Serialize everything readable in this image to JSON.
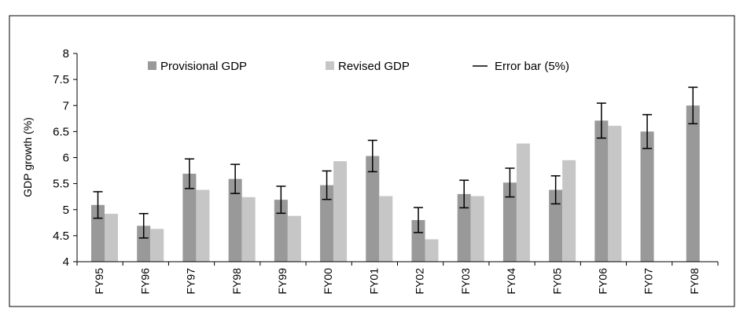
{
  "chart_data": {
    "type": "bar",
    "title": "",
    "xlabel": "",
    "ylabel": "GDP growth (%)",
    "ylim": [
      4,
      8
    ],
    "yticks": [
      "4",
      "4.5",
      "5",
      "5.5",
      "6",
      "6.5",
      "7",
      "7.5",
      "8"
    ],
    "grid": false,
    "legend_position": "top",
    "categories": [
      "FY95",
      "FY96",
      "FY97",
      "FY98",
      "FY99",
      "FY00",
      "FY01",
      "FY02",
      "FY03",
      "FY04",
      "FY05",
      "FY06",
      "FY07",
      "FY08"
    ],
    "series": [
      {
        "name": "Provisional GDP",
        "color": "#999999",
        "values": [
          5.09,
          4.69,
          5.69,
          5.59,
          5.19,
          5.47,
          6.03,
          4.8,
          5.3,
          5.52,
          5.38,
          6.71,
          6.5,
          7.0
        ]
      },
      {
        "name": "Revised GDP",
        "color": "#c6c6c6",
        "values": [
          4.92,
          4.63,
          5.38,
          5.24,
          4.88,
          5.93,
          5.26,
          4.43,
          5.26,
          6.27,
          5.95,
          6.61,
          null,
          null
        ]
      }
    ],
    "error_bar": {
      "label": "Error bar (5%)",
      "percent": 5,
      "applies_to": "Provisional GDP"
    }
  }
}
